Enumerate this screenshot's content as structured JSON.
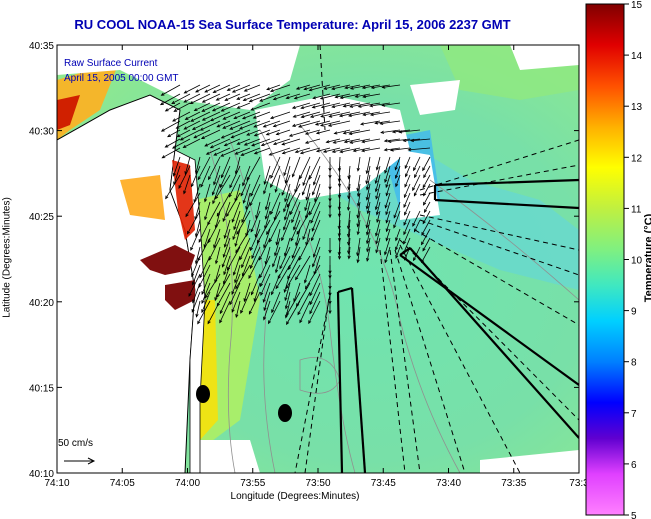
{
  "title": "RU COOL  NOAA-15  Sea Surface Temperature:  April 15, 2006 2237 GMT",
  "legend": {
    "line1": "Raw Surface Current",
    "line2": "April 15, 2005 00:00 GMT"
  },
  "scale_label": "50 cm/s",
  "xaxis": {
    "label": "Longitude (Degrees:Minutes)",
    "ticks": [
      "74:10",
      "74:05",
      "74:00",
      "73:55",
      "73:50",
      "73:45",
      "73:40",
      "73:35",
      "73:3"
    ]
  },
  "yaxis": {
    "label": "Latitude (Degrees:Minutes)",
    "ticks": [
      "40:35",
      "40:30",
      "40:25",
      "40:20",
      "40:15",
      "40:10"
    ]
  },
  "colorbar": {
    "label": "Temperature (°C)",
    "ticks": [
      "15",
      "14",
      "13",
      "12",
      "11",
      "10",
      "9",
      "8",
      "7",
      "6",
      "5"
    ]
  },
  "colors": {
    "title": "#0000b4",
    "water_mid": "#6ce0b4"
  }
}
